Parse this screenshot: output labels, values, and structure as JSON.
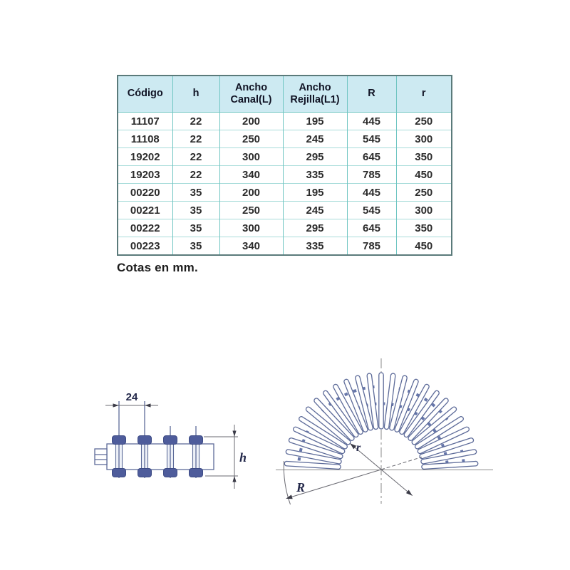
{
  "table": {
    "columns": [
      "Código",
      "h",
      "Ancho Canal(L)",
      "Ancho Rejilla(L1)",
      "R",
      "r"
    ],
    "rows": [
      [
        "11107",
        "22",
        "200",
        "195",
        "445",
        "250"
      ],
      [
        "11108",
        "22",
        "250",
        "245",
        "545",
        "300"
      ],
      [
        "19202",
        "22",
        "300",
        "295",
        "645",
        "350"
      ],
      [
        "19203",
        "22",
        "340",
        "335",
        "785",
        "450"
      ],
      [
        "00220",
        "35",
        "200",
        "195",
        "445",
        "250"
      ],
      [
        "00221",
        "35",
        "250",
        "245",
        "545",
        "300"
      ],
      [
        "00222",
        "35",
        "300",
        "295",
        "645",
        "350"
      ],
      [
        "00223",
        "35",
        "340",
        "335",
        "785",
        "450"
      ]
    ],
    "header_bg": "#cdeaf2",
    "grid_color": "#6fc5c2",
    "row_line_color": "#a8dcda",
    "outer_border_color": "#5a7a7a"
  },
  "caption": "Cotas en mm.",
  "diagrams": {
    "profile": {
      "pitch_label": "24",
      "height_label": "h"
    },
    "fan": {
      "inner_radius_label": "r",
      "outer_radius_label": "R"
    },
    "sketch_color": "#5d6b99"
  }
}
